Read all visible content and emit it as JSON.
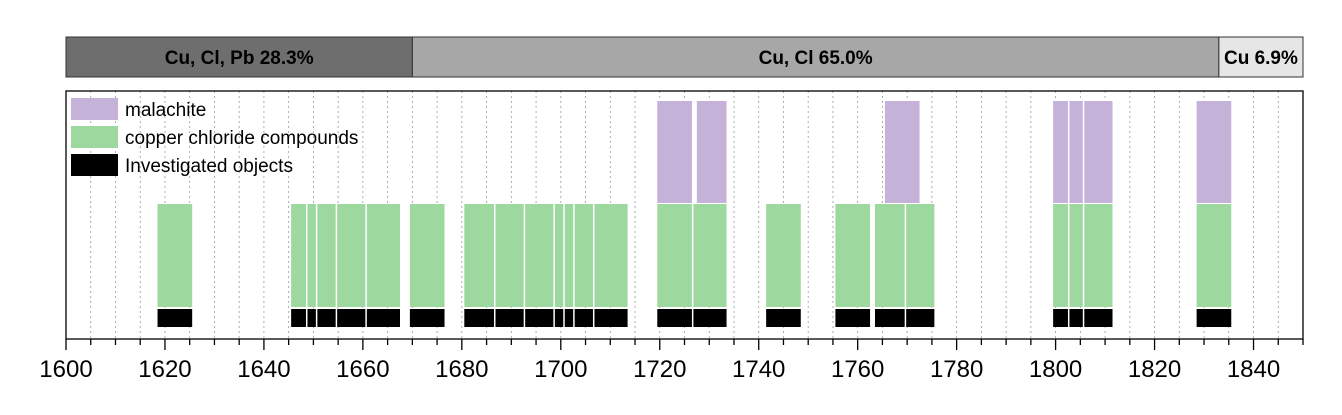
{
  "colors": {
    "malachite": "#c4b2d8",
    "copper_chloride": "#9dd89f",
    "investigated": "#000000",
    "period_dark": "#6e6e6e",
    "period_mid": "#a7a7a7",
    "period_light": "#e6e6e6"
  },
  "chart_data": {
    "type": "bar",
    "subtype": "timeline-range",
    "xlim": [
      1600,
      1850
    ],
    "x_ticks": [
      1600,
      1620,
      1640,
      1660,
      1680,
      1700,
      1720,
      1740,
      1760,
      1780,
      1800,
      1820,
      1840
    ],
    "minor_tick_step": 5,
    "grid": "vertical-dotted",
    "legend_position": "top-left",
    "legend": [
      {
        "key": "malachite",
        "label": "malachite"
      },
      {
        "key": "copper_chloride",
        "label": "copper chloride compounds"
      },
      {
        "key": "investigated",
        "label": "Investigated objects"
      }
    ],
    "periods": [
      {
        "label": "Cu, Cl, Pb 28.3%",
        "start": 1600,
        "end": 1670,
        "color_key": "period_dark"
      },
      {
        "label": "Cu, Cl 65.0%",
        "start": 1670,
        "end": 1833,
        "color_key": "period_mid"
      },
      {
        "label": "Cu 6.9%",
        "start": 1833,
        "end": 1850,
        "color_key": "period_light"
      }
    ],
    "series": [
      {
        "key": "investigated",
        "ranges": [
          [
            1618.5,
            1625.5
          ],
          [
            1645.5,
            1648.5
          ],
          [
            1648.8,
            1650.5
          ],
          [
            1650.8,
            1654.5
          ],
          [
            1654.8,
            1660.5
          ],
          [
            1660.8,
            1667.5
          ],
          [
            1669.5,
            1676.5
          ],
          [
            1680.5,
            1686.5
          ],
          [
            1686.8,
            1692.5
          ],
          [
            1692.8,
            1698.5
          ],
          [
            1698.8,
            1700.5
          ],
          [
            1700.8,
            1702.5
          ],
          [
            1702.8,
            1706.5
          ],
          [
            1706.8,
            1713.5
          ],
          [
            1719.5,
            1726.5
          ],
          [
            1726.8,
            1733.5
          ],
          [
            1741.5,
            1748.5
          ],
          [
            1755.5,
            1762.5
          ],
          [
            1763.5,
            1769.5
          ],
          [
            1769.8,
            1775.5
          ],
          [
            1799.5,
            1802.5
          ],
          [
            1802.8,
            1805.5
          ],
          [
            1805.8,
            1811.5
          ],
          [
            1828.5,
            1835.5
          ]
        ]
      },
      {
        "key": "copper_chloride",
        "ranges": [
          [
            1618.5,
            1625.5
          ],
          [
            1645.5,
            1648.5
          ],
          [
            1648.8,
            1650.5
          ],
          [
            1650.8,
            1654.5
          ],
          [
            1654.8,
            1660.5
          ],
          [
            1660.8,
            1667.5
          ],
          [
            1669.5,
            1676.5
          ],
          [
            1680.5,
            1686.5
          ],
          [
            1686.8,
            1692.5
          ],
          [
            1692.8,
            1698.5
          ],
          [
            1698.8,
            1700.5
          ],
          [
            1700.8,
            1702.5
          ],
          [
            1702.8,
            1706.5
          ],
          [
            1706.8,
            1713.5
          ],
          [
            1719.5,
            1726.5
          ],
          [
            1726.8,
            1733.5
          ],
          [
            1741.5,
            1748.5
          ],
          [
            1755.5,
            1762.5
          ],
          [
            1763.5,
            1769.5
          ],
          [
            1769.8,
            1775.5
          ],
          [
            1799.5,
            1802.5
          ],
          [
            1802.8,
            1805.5
          ],
          [
            1805.8,
            1811.5
          ],
          [
            1828.5,
            1835.5
          ]
        ]
      },
      {
        "key": "malachite",
        "ranges": [
          [
            1719.5,
            1726.5
          ],
          [
            1727.5,
            1733.5
          ],
          [
            1765.5,
            1772.5
          ],
          [
            1799.5,
            1802.5
          ],
          [
            1802.8,
            1805.5
          ],
          [
            1805.8,
            1811.5
          ],
          [
            1828.5,
            1835.5
          ]
        ]
      }
    ]
  }
}
